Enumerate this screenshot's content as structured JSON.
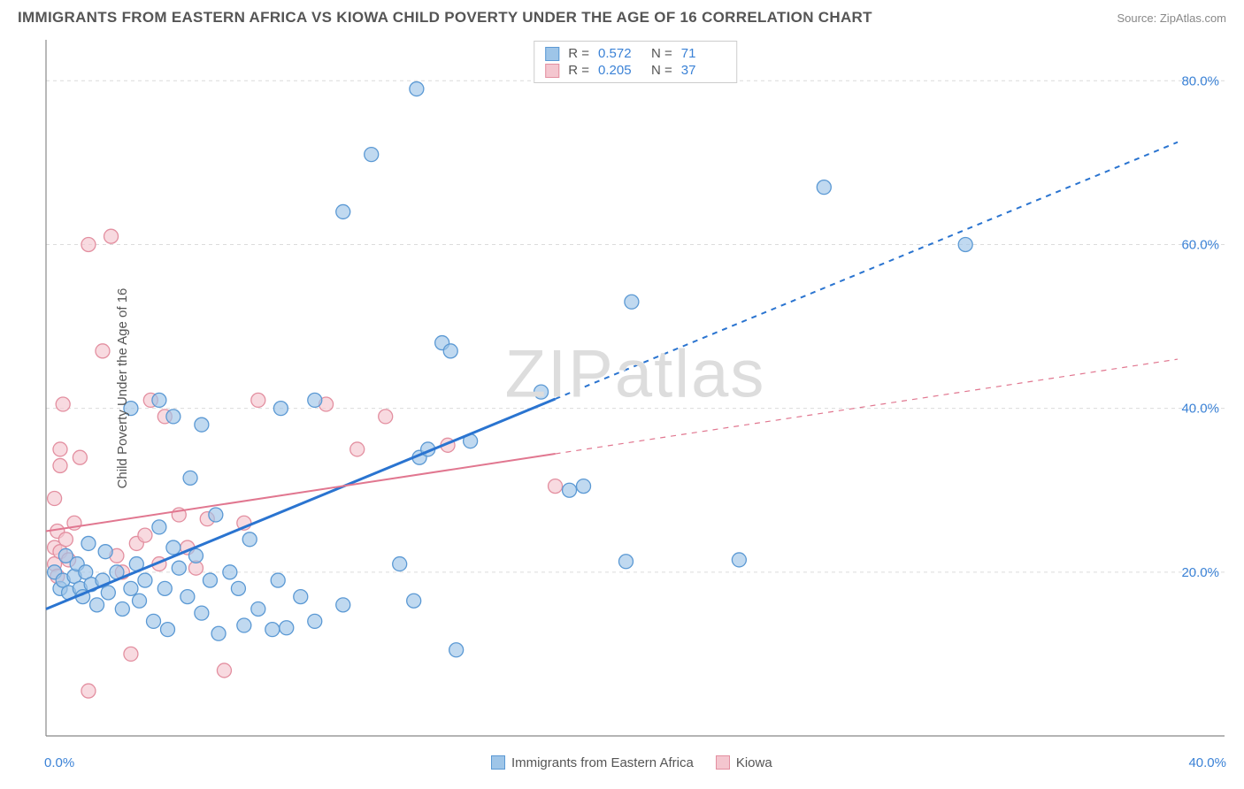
{
  "title": "IMMIGRANTS FROM EASTERN AFRICA VS KIOWA CHILD POVERTY UNDER THE AGE OF 16 CORRELATION CHART",
  "source": "Source: ZipAtlas.com",
  "ylabel": "Child Poverty Under the Age of 16",
  "watermark": "ZIPatlas",
  "chart": {
    "type": "scatter",
    "xlim": [
      0,
      40
    ],
    "ylim": [
      0,
      85
    ],
    "xticks": [
      {
        "v": 0,
        "l": "0.0%"
      },
      {
        "v": 40,
        "l": "40.0%"
      }
    ],
    "yticks": [
      {
        "v": 20,
        "l": "20.0%"
      },
      {
        "v": 40,
        "l": "40.0%"
      },
      {
        "v": 60,
        "l": "60.0%"
      },
      {
        "v": 80,
        "l": "80.0%"
      }
    ],
    "grid_color": "#dcdcdc",
    "axis_color": "#888888",
    "background": "#ffffff",
    "marker_radius": 8,
    "series": [
      {
        "name": "Immigrants from Eastern Africa",
        "fill": "#9ec5e8",
        "stroke": "#5b99d4",
        "line_color": "#2a74d0",
        "R": "0.572",
        "N": "71",
        "trend": {
          "x1": 0,
          "y1": 15.5,
          "x2": 40,
          "y2": 72.5,
          "solid_until": 18
        },
        "points": [
          [
            0.3,
            20
          ],
          [
            0.5,
            18
          ],
          [
            0.6,
            19
          ],
          [
            0.8,
            17.5
          ],
          [
            0.7,
            22
          ],
          [
            1.0,
            19.5
          ],
          [
            1.2,
            18
          ],
          [
            1.1,
            21
          ],
          [
            1.4,
            20
          ],
          [
            1.5,
            23.5
          ],
          [
            1.3,
            17
          ],
          [
            1.6,
            18.5
          ],
          [
            1.8,
            16
          ],
          [
            2.0,
            19
          ],
          [
            2.2,
            17.5
          ],
          [
            2.5,
            20
          ],
          [
            2.1,
            22.5
          ],
          [
            2.7,
            15.5
          ],
          [
            3.0,
            18
          ],
          [
            3.2,
            21
          ],
          [
            3.0,
            40
          ],
          [
            3.3,
            16.5
          ],
          [
            3.5,
            19
          ],
          [
            3.8,
            14
          ],
          [
            4.0,
            25.5
          ],
          [
            4.2,
            18
          ],
          [
            4.0,
            41
          ],
          [
            4.5,
            23
          ],
          [
            4.3,
            13
          ],
          [
            4.5,
            39
          ],
          [
            4.7,
            20.5
          ],
          [
            5.0,
            17
          ],
          [
            5.1,
            31.5
          ],
          [
            5.3,
            22
          ],
          [
            5.5,
            15
          ],
          [
            5.5,
            38
          ],
          [
            5.8,
            19
          ],
          [
            6.0,
            27
          ],
          [
            6.1,
            12.5
          ],
          [
            6.5,
            20
          ],
          [
            6.8,
            18
          ],
          [
            7.0,
            13.5
          ],
          [
            7.2,
            24
          ],
          [
            7.5,
            15.5
          ],
          [
            8.0,
            13
          ],
          [
            8.2,
            19
          ],
          [
            8.5,
            13.2
          ],
          [
            8.3,
            40
          ],
          [
            9.0,
            17
          ],
          [
            9.5,
            14
          ],
          [
            9.5,
            41
          ],
          [
            10.5,
            16
          ],
          [
            10.5,
            64
          ],
          [
            11.5,
            71
          ],
          [
            12.5,
            21
          ],
          [
            13.0,
            16.5
          ],
          [
            13.1,
            79
          ],
          [
            13.2,
            34
          ],
          [
            13.5,
            35
          ],
          [
            14.0,
            48
          ],
          [
            14.3,
            47
          ],
          [
            14.5,
            10.5
          ],
          [
            15.0,
            36
          ],
          [
            17.5,
            42
          ],
          [
            18.5,
            30
          ],
          [
            19.0,
            30.5
          ],
          [
            20.5,
            21.3
          ],
          [
            20.7,
            53
          ],
          [
            24.5,
            21.5
          ],
          [
            27.5,
            67
          ],
          [
            32.5,
            60
          ]
        ]
      },
      {
        "name": "Kiowa",
        "fill": "#f4c6cf",
        "stroke": "#e38fa0",
        "line_color": "#e17790",
        "R": "0.205",
        "N": "37",
        "trend": {
          "x1": 0,
          "y1": 25,
          "x2": 40,
          "y2": 46,
          "solid_until": 18
        },
        "points": [
          [
            0.3,
            21
          ],
          [
            0.3,
            23
          ],
          [
            0.4,
            25
          ],
          [
            0.3,
            29
          ],
          [
            0.5,
            22.5
          ],
          [
            0.5,
            33
          ],
          [
            0.5,
            35
          ],
          [
            0.7,
            24
          ],
          [
            0.6,
            40.5
          ],
          [
            0.4,
            19.5
          ],
          [
            0.8,
            21.5
          ],
          [
            1.0,
            26
          ],
          [
            1.2,
            34
          ],
          [
            1.5,
            5.5
          ],
          [
            1.5,
            60
          ],
          [
            2.0,
            47
          ],
          [
            2.3,
            61
          ],
          [
            2.5,
            22
          ],
          [
            2.7,
            20
          ],
          [
            3.0,
            10
          ],
          [
            3.2,
            23.5
          ],
          [
            3.5,
            24.5
          ],
          [
            3.7,
            41
          ],
          [
            4.0,
            21
          ],
          [
            4.2,
            39
          ],
          [
            4.7,
            27
          ],
          [
            5.0,
            23
          ],
          [
            5.3,
            20.5
          ],
          [
            5.7,
            26.5
          ],
          [
            6.3,
            8
          ],
          [
            7.0,
            26
          ],
          [
            7.5,
            41
          ],
          [
            9.9,
            40.5
          ],
          [
            11.0,
            35
          ],
          [
            12.0,
            39
          ],
          [
            14.2,
            35.5
          ],
          [
            18.0,
            30.5
          ]
        ]
      }
    ]
  },
  "bottom_legend": [
    {
      "label": "Immigrants from Eastern Africa",
      "fill": "#9ec5e8",
      "stroke": "#5b99d4"
    },
    {
      "label": "Kiowa",
      "fill": "#f4c6cf",
      "stroke": "#e38fa0"
    }
  ]
}
